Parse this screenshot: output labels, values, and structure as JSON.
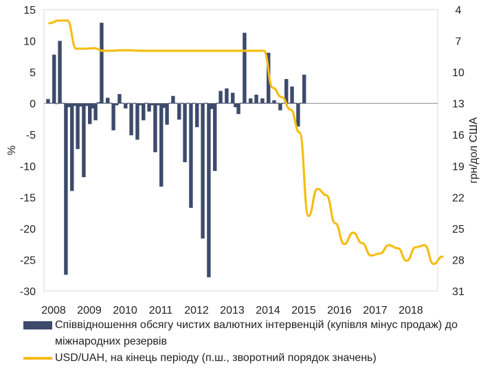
{
  "chart_data": {
    "type": "bar+line",
    "y_left": {
      "label": "%",
      "ticks": [
        15,
        10,
        5,
        0,
        -5,
        -10,
        -15,
        -20,
        -25,
        -30
      ],
      "range": [
        -30,
        15
      ]
    },
    "y_right": {
      "label": "грн/дол США",
      "ticks": [
        4,
        7,
        10,
        13,
        16,
        19,
        22,
        25,
        28,
        31
      ],
      "range": [
        4,
        31
      ],
      "reversed": true
    },
    "x_ticks": [
      "2008",
      "2009",
      "2010",
      "2011",
      "2012",
      "2013",
      "2014",
      "2015",
      "2016",
      "2017",
      "2018"
    ],
    "x_range": [
      2008,
      2018.75
    ],
    "series": [
      {
        "name": "Співвідношення обсягу чистих валютних інтервенцій (купівля мінус продаж) до міжнародних резервів",
        "type": "bar",
        "color": "#3d4a6b",
        "points": [
          [
            2007.96,
            0.7
          ],
          [
            2008.04,
            0.1
          ],
          [
            2008.13,
            7.8
          ],
          [
            2008.21,
            -0.1
          ],
          [
            2008.29,
            10.0
          ],
          [
            2008.38,
            0.1
          ],
          [
            2008.46,
            -27.4
          ],
          [
            2008.54,
            -0.6
          ],
          [
            2008.63,
            -14.0
          ],
          [
            2008.71,
            -0.4
          ],
          [
            2008.79,
            -7.3
          ],
          [
            2008.88,
            -0.5
          ],
          [
            2008.96,
            -11.8
          ],
          [
            2009.04,
            -0.4
          ],
          [
            2009.13,
            -3.3
          ],
          [
            2009.21,
            -0.8
          ],
          [
            2009.29,
            -2.7
          ],
          [
            2009.38,
            0.2
          ],
          [
            2009.46,
            12.9
          ],
          [
            2009.54,
            0.1
          ],
          [
            2009.63,
            0.9
          ],
          [
            2009.71,
            0.1
          ],
          [
            2009.79,
            -4.3
          ],
          [
            2009.88,
            -0.3
          ],
          [
            2009.96,
            1.5
          ],
          [
            2010.04,
            0.1
          ],
          [
            2010.13,
            -0.8
          ],
          [
            2010.21,
            0.1
          ],
          [
            2010.29,
            -5.1
          ],
          [
            2010.38,
            0.1
          ],
          [
            2010.46,
            -5.8
          ],
          [
            2010.54,
            -0.3
          ],
          [
            2010.63,
            -2.7
          ],
          [
            2010.71,
            0.1
          ],
          [
            2010.79,
            -1.3
          ],
          [
            2010.88,
            -0.3
          ],
          [
            2010.96,
            -7.8
          ],
          [
            2011.04,
            -0.3
          ],
          [
            2011.13,
            -13.3
          ],
          [
            2011.21,
            -0.7
          ],
          [
            2011.29,
            -3.4
          ],
          [
            2011.38,
            0.1
          ],
          [
            2011.46,
            1.2
          ],
          [
            2011.54,
            0.1
          ],
          [
            2011.63,
            -2.6
          ],
          [
            2011.71,
            0.1
          ],
          [
            2011.79,
            -9.4
          ],
          [
            2011.88,
            0.1
          ],
          [
            2011.96,
            -16.7
          ],
          [
            2012.04,
            0.1
          ],
          [
            2012.13,
            -3.8
          ],
          [
            2012.21,
            -0.1
          ],
          [
            2012.29,
            -21.6
          ],
          [
            2012.38,
            0.1
          ],
          [
            2012.46,
            -27.8
          ],
          [
            2012.54,
            -0.9
          ],
          [
            2012.63,
            -10.8
          ],
          [
            2012.71,
            0.1
          ],
          [
            2012.79,
            2.0
          ],
          [
            2012.88,
            0.1
          ],
          [
            2012.96,
            2.4
          ],
          [
            2013.04,
            0.1
          ],
          [
            2013.13,
            1.7
          ],
          [
            2013.21,
            -0.6
          ],
          [
            2013.29,
            -1.7
          ],
          [
            2013.38,
            0.1
          ],
          [
            2013.46,
            11.3
          ],
          [
            2013.54,
            0.1
          ],
          [
            2013.63,
            0.8
          ],
          [
            2013.71,
            0.1
          ],
          [
            2013.79,
            1.4
          ],
          [
            2013.88,
            0.1
          ],
          [
            2013.96,
            0.8
          ],
          [
            2014.04,
            0.1
          ],
          [
            2014.13,
            8.1
          ],
          [
            2014.21,
            0.1
          ],
          [
            2014.29,
            0.5
          ],
          [
            2014.38,
            0.1
          ],
          [
            2014.46,
            -1.1
          ],
          [
            2014.54,
            0.1
          ],
          [
            2014.63,
            3.9
          ],
          [
            2014.71,
            0.1
          ],
          [
            2014.79,
            2.7
          ],
          [
            2014.88,
            0.1
          ],
          [
            2014.96,
            -3.7
          ],
          [
            2015.04,
            0.1
          ],
          [
            2015.13,
            4.6
          ]
        ]
      },
      {
        "name": "USD/UAH, на кінець періоду (п.ш., зворотний порядок значень)",
        "type": "line",
        "axis": "right",
        "color": "#f5bd12",
        "points": [
          [
            2008.0,
            5.3
          ],
          [
            2008.25,
            5.05
          ],
          [
            2008.5,
            5.05
          ],
          [
            2008.75,
            7.75
          ],
          [
            2009.0,
            7.75
          ],
          [
            2009.25,
            7.7
          ],
          [
            2009.5,
            7.95
          ],
          [
            2009.75,
            7.95
          ],
          [
            2010.0,
            7.9
          ],
          [
            2010.25,
            7.9
          ],
          [
            2010.5,
            7.95
          ],
          [
            2010.75,
            7.95
          ],
          [
            2011.0,
            7.95
          ],
          [
            2011.25,
            7.95
          ],
          [
            2011.5,
            7.95
          ],
          [
            2011.75,
            7.95
          ],
          [
            2012.0,
            7.95
          ],
          [
            2012.25,
            7.95
          ],
          [
            2012.5,
            7.95
          ],
          [
            2012.75,
            7.95
          ],
          [
            2013.0,
            7.95
          ],
          [
            2013.25,
            7.95
          ],
          [
            2013.5,
            7.95
          ],
          [
            2013.75,
            7.95
          ],
          [
            2014.0,
            7.95
          ],
          [
            2014.25,
            11.5
          ],
          [
            2014.5,
            12.4
          ],
          [
            2014.75,
            13.6
          ],
          [
            2015.0,
            15.8
          ],
          [
            2015.25,
            23.8
          ],
          [
            2015.5,
            21.2
          ],
          [
            2015.75,
            21.8
          ],
          [
            2016.0,
            24.5
          ],
          [
            2016.25,
            26.5
          ],
          [
            2016.5,
            25.4
          ],
          [
            2016.75,
            26.4
          ],
          [
            2017.0,
            27.6
          ],
          [
            2017.25,
            27.4
          ],
          [
            2017.5,
            26.6
          ],
          [
            2017.75,
            26.9
          ],
          [
            2018.0,
            28.1
          ],
          [
            2018.25,
            26.8
          ],
          [
            2018.5,
            26.6
          ],
          [
            2018.75,
            28.4
          ],
          [
            2019.0,
            27.7
          ]
        ]
      }
    ]
  }
}
